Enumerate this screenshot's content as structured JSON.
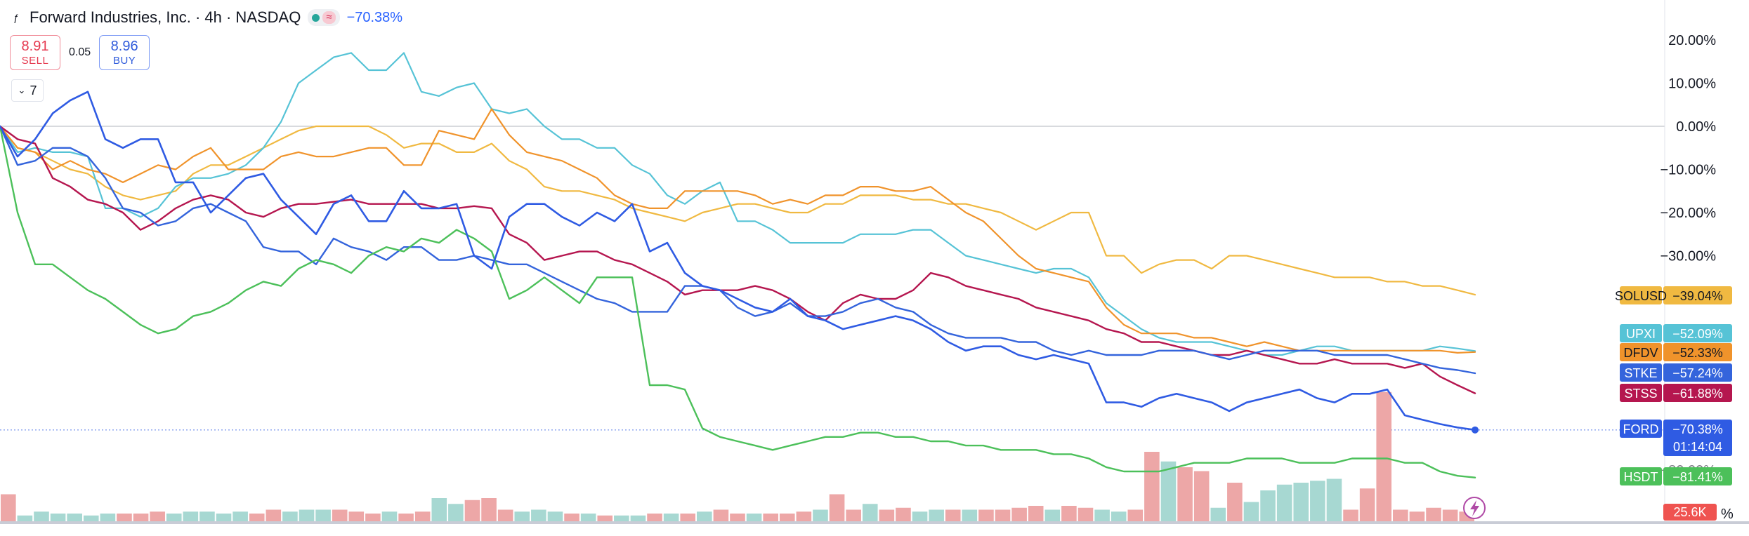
{
  "header": {
    "title": "Forward Industries, Inc. · 4h · NASDAQ",
    "change": "−70.38%",
    "wave_symbol": "≈",
    "symbol_icon": "ƒ"
  },
  "trade": {
    "sell_price": "8.91",
    "sell_label": "SELL",
    "spread": "0.05",
    "buy_price": "8.96",
    "buy_label": "BUY"
  },
  "indicators_toggle": {
    "count": "7",
    "icon": "chevron-down-icon"
  },
  "volume_badge": "25.6K",
  "countdown": "01:14:04",
  "colors": {
    "SOLUSD": "#f0b941",
    "UPXI": "#56c3d6",
    "DFDV": "#f0932b",
    "STKE": "#3464dc",
    "STSS": "#b5164f",
    "FORD": "#2f5be3",
    "HSDT": "#4cc05a",
    "vol_up": "#a7d8d2",
    "vol_down": "#eda7a7",
    "grid_zero": "#b2b5be"
  },
  "chart_data": {
    "type": "line",
    "y_unit": "%",
    "ylim": [
      -90,
      25
    ],
    "y_ticks": [
      "20.00%",
      "10.00%",
      "0.00%",
      "−10.00%",
      "−20.00%",
      "−30.00%"
    ],
    "partial_tick": "−80.00%",
    "partial_axis_text": "%",
    "series": [
      {
        "name": "FORD",
        "last": "−70.38%",
        "values": [
          0,
          -7,
          -3,
          3,
          6,
          8,
          -3,
          -5,
          -3,
          -3,
          -13,
          -13,
          -20,
          -16,
          -12,
          -11,
          -17,
          -21,
          -25,
          -18,
          -16,
          -22,
          -22,
          -15,
          -19,
          -19,
          -18,
          -30,
          -33,
          -21,
          -18,
          -18,
          -21,
          -23,
          -20,
          -22,
          -18,
          -29,
          -27,
          -34,
          -37,
          -38,
          -40,
          -42,
          -43,
          -40,
          -44,
          -45,
          -47,
          -46,
          -45,
          -44,
          -45,
          -47,
          -50,
          -52,
          -51,
          -51,
          -53,
          -54,
          -53,
          -54,
          -55,
          -64,
          -64,
          -65,
          -63,
          -62,
          -63,
          -64,
          -66,
          -64,
          -63,
          -62,
          -61,
          -63,
          -64,
          -62,
          -62,
          -61,
          -67,
          -68,
          -69,
          -69.8,
          -70.38
        ]
      },
      {
        "name": "STKE",
        "last": "−57.24%",
        "values": [
          0,
          -9,
          -8,
          -5,
          -5,
          -7,
          -12,
          -19,
          -20,
          -23,
          -22,
          -19,
          -18,
          -20,
          -22,
          -28,
          -29,
          -29,
          -32,
          -26,
          -28,
          -29,
          -31,
          -28,
          -28,
          -31,
          -31,
          -30,
          -31,
          -32,
          -32,
          -34,
          -36,
          -38,
          -40,
          -41,
          -43,
          -43,
          -43,
          -37,
          -37,
          -38,
          -42,
          -44,
          -43,
          -41,
          -44,
          -44,
          -43,
          -41,
          -40,
          -42,
          -43,
          -46,
          -48,
          -49,
          -49,
          -49,
          -50,
          -50,
          -52,
          -53,
          -52,
          -53,
          -53,
          -53,
          -52,
          -52,
          -52,
          -53,
          -54,
          -53,
          -52,
          -52,
          -52,
          -52,
          -53,
          -53,
          -53,
          -53,
          -54,
          -55,
          -56,
          -56.5,
          -57.24
        ]
      },
      {
        "name": "STSS",
        "last": "−61.88%",
        "values": [
          0,
          -3,
          -4,
          -12,
          -14,
          -17,
          -18,
          -20,
          -24,
          -22,
          -19,
          -17,
          -16,
          -17,
          -20,
          -21,
          -19,
          -18,
          -18,
          -17.5,
          -17,
          -18,
          -18,
          -18,
          -18,
          -19,
          -19,
          -18.5,
          -19,
          -25,
          -27,
          -31,
          -30,
          -29,
          -29,
          -31,
          -32,
          -34,
          -36,
          -39,
          -38,
          -38,
          -38,
          -37,
          -38,
          -40,
          -43,
          -45,
          -41,
          -39,
          -40,
          -40,
          -38,
          -34,
          -35,
          -37,
          -38,
          -39,
          -40,
          -42,
          -43,
          -44,
          -45,
          -47,
          -48,
          -50,
          -50,
          -51,
          -52,
          -53,
          -53,
          -52,
          -53,
          -54,
          -55,
          -55,
          -54,
          -55,
          -55,
          -55,
          -56,
          -55,
          -58,
          -60,
          -61.88
        ]
      },
      {
        "name": "UPXI",
        "last": "−52.09%",
        "values": [
          0,
          -6,
          -5,
          -6,
          -6,
          -7,
          -19,
          -19,
          -21,
          -19,
          -14,
          -12,
          -12,
          -11,
          -9,
          -5,
          1,
          10,
          13,
          16,
          17,
          13,
          13,
          17,
          8,
          7,
          9,
          10,
          4,
          3,
          4,
          0,
          -3,
          -3,
          -5,
          -5,
          -9,
          -11,
          -16,
          -18,
          -15,
          -13,
          -22,
          -22,
          -24,
          -27,
          -27,
          -27,
          -27,
          -25,
          -25,
          -25,
          -24,
          -24,
          -27,
          -30,
          -31,
          -32,
          -33,
          -34,
          -33,
          -33,
          -35,
          -41,
          -44,
          -47,
          -49,
          -50,
          -50,
          -50,
          -51,
          -52,
          -53,
          -53,
          -52,
          -51,
          -51,
          -52,
          -52,
          -52,
          -52,
          -52,
          -51,
          -51.5,
          -52.09
        ]
      },
      {
        "name": "DFDV",
        "last": "−52.33%",
        "values": [
          0,
          -5,
          -6,
          -10,
          -8,
          -10,
          -11,
          -13,
          -11,
          -9,
          -10,
          -7,
          -5,
          -10,
          -10,
          -10,
          -7,
          -6,
          -7,
          -7,
          -6,
          -5,
          -5,
          -9,
          -9,
          -1,
          -2,
          -3,
          4,
          -2,
          -6,
          -7,
          -8,
          -10,
          -12,
          -16,
          -18,
          -19,
          -19,
          -15,
          -15,
          -15,
          -15,
          -16,
          -18,
          -17,
          -18,
          -16,
          -16,
          -14,
          -14,
          -15,
          -15,
          -14,
          -17,
          -20,
          -22,
          -26,
          -30,
          -33,
          -34,
          -35,
          -36,
          -42,
          -46,
          -48,
          -48,
          -48,
          -49,
          -49,
          -50,
          -51,
          -50,
          -51,
          -52,
          -52,
          -52,
          -52,
          -52,
          -52,
          -52,
          -52,
          -52,
          -52.5,
          -52.33
        ]
      },
      {
        "name": "SOLUSD",
        "last": "−39.04%",
        "values": [
          0,
          -5,
          -6,
          -8,
          -10,
          -11,
          -14,
          -16,
          -17,
          -16,
          -15,
          -11,
          -9,
          -9,
          -7,
          -5,
          -3,
          -1,
          0,
          0,
          0,
          0,
          -2,
          -5,
          -4,
          -4,
          -6,
          -6,
          -4,
          -8,
          -10,
          -14,
          -15,
          -15,
          -16,
          -17,
          -19,
          -20,
          -21,
          -22,
          -20,
          -19,
          -18,
          -18,
          -19,
          -20,
          -20,
          -18,
          -18,
          -16,
          -16,
          -16,
          -17,
          -17,
          -18,
          -18,
          -19,
          -20,
          -22,
          -24,
          -22,
          -20,
          -20,
          -30,
          -30,
          -34,
          -32,
          -31,
          -31,
          -33,
          -30,
          -30,
          -31,
          -32,
          -33,
          -34,
          -35,
          -35,
          -35,
          -36,
          -36,
          -37,
          -37,
          -38,
          -39.04
        ]
      },
      {
        "name": "HSDT",
        "last": "−81.41%",
        "values": [
          0,
          -20,
          -32,
          -32,
          -35,
          -38,
          -40,
          -43,
          -46,
          -48,
          -47,
          -44,
          -43,
          -41,
          -38,
          -36,
          -37,
          -33,
          -31,
          -32,
          -34,
          -30,
          -28,
          -29,
          -26,
          -27,
          -24,
          -26,
          -29,
          -40,
          -38,
          -35,
          -38,
          -41,
          -35,
          -35,
          -35,
          -60,
          -60,
          -61,
          -70,
          -72,
          -73,
          -74,
          -75,
          -74,
          -73,
          -72,
          -72,
          -71,
          -71,
          -72,
          -72,
          -73,
          -73,
          -74,
          -74,
          -75,
          -75,
          -75,
          -76,
          -76,
          -77,
          -79,
          -80,
          -80,
          -80,
          -79,
          -78,
          -78,
          -78,
          -77,
          -77,
          -77,
          -78,
          -78,
          -78,
          -77,
          -77,
          -77,
          -78,
          -78,
          -80,
          -81,
          -81.41
        ]
      }
    ],
    "volume": {
      "values": [
        14,
        3,
        5,
        4,
        4,
        3,
        4,
        4,
        4,
        5,
        4,
        5,
        5,
        4,
        5,
        4,
        6,
        5,
        6,
        6,
        6,
        5,
        4,
        5,
        4,
        5,
        12,
        9,
        11,
        12,
        6,
        5,
        6,
        5,
        4,
        4,
        3,
        3,
        3,
        4,
        4,
        4,
        5,
        6,
        4,
        4,
        4,
        4,
        5,
        6,
        14,
        6,
        9,
        6,
        7,
        5,
        6,
        6,
        6,
        6,
        6,
        7,
        8,
        6,
        8,
        7,
        6,
        5,
        6,
        36,
        31,
        28,
        26,
        7,
        20,
        10,
        16,
        19,
        20,
        21,
        22,
        6,
        17,
        67,
        6,
        5,
        7,
        6,
        5
      ],
      "direction": [
        "d",
        "u",
        "u",
        "u",
        "u",
        "u",
        "u",
        "d",
        "d",
        "d",
        "u",
        "u",
        "u",
        "u",
        "u",
        "d",
        "d",
        "u",
        "u",
        "u",
        "d",
        "d",
        "d",
        "u",
        "d",
        "d",
        "u",
        "u",
        "d",
        "d",
        "d",
        "u",
        "u",
        "u",
        "d",
        "u",
        "d",
        "u",
        "u",
        "d",
        "u",
        "d",
        "u",
        "d",
        "d",
        "u",
        "d",
        "d",
        "d",
        "u",
        "d",
        "d",
        "u",
        "d",
        "d",
        "u",
        "u",
        "d",
        "u",
        "d",
        "d",
        "d",
        "d",
        "u",
        "d",
        "d",
        "u",
        "u",
        "d",
        "d",
        "u",
        "d",
        "d",
        "u",
        "d",
        "u",
        "u",
        "u",
        "u",
        "u",
        "u",
        "d",
        "d",
        "d",
        "d",
        "d",
        "d",
        "d",
        "d"
      ]
    }
  }
}
